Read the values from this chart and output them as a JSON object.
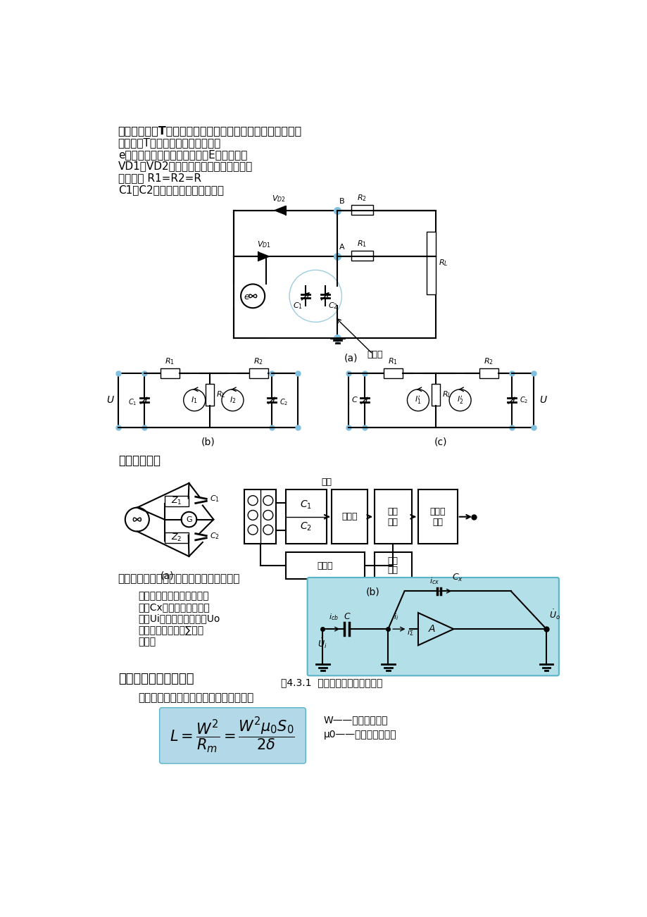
{
  "title_text": "测量电路：双T形电路、电桥电路、运算放大器的工作原理；",
  "line2": "二极管双T形交流电桥电路原理图。",
  "line3": "e是高频电源，它提供了幅值为E的对称方波",
  "line4": "VD1、VD2为特性完全相同的两只二极管",
  "line5": "固定电阻 R1=R2=R",
  "line6": "C1、C2为传感器的两个差动电容",
  "fig_a_label": "(a)",
  "fig_b_label": "(b)",
  "fig_c_label": "(c)",
  "chuanganqi": "传感器",
  "dianqiao_title": "电桥测量电路",
  "fig_b2_label": "(b)",
  "fig_a2_label": "(a)",
  "yunsuanfangdaqi": "运算放大器式电路（完全解决非线性误差）",
  "yunsuanfangdaqi_desc1": "运算放大器的电路原理图。",
  "yunsuanfangdaqi_desc2": "图中Cx为电容式传感器电",
  "yunsuanfangdaqi_desc3": "容；Ui是交流电源电压；Uo",
  "yunsuanfangdaqi_desc4": "是输出信号电压；∑是虚",
  "yunsuanfangdaqi_desc5": "地点。",
  "fig431_label": "图4.3.1  运算放大器式电路原理图",
  "chapter5_title": "第五章：电感式传感器",
  "bianqijiao_title": "变气隙式自感传感器的电感值的表达式：",
  "W_desc": "W——线圈的匝数；",
  "mu0_desc": "μ0——空气的磁导率；",
  "dianqiao_block": "电桥",
  "fangdaqi_block": "放大器",
  "zhendang_block": "振荡器",
  "background_color": "#ffffff",
  "highlight_color": "#b3e0e8",
  "formula_bg": "#b3d9e8"
}
